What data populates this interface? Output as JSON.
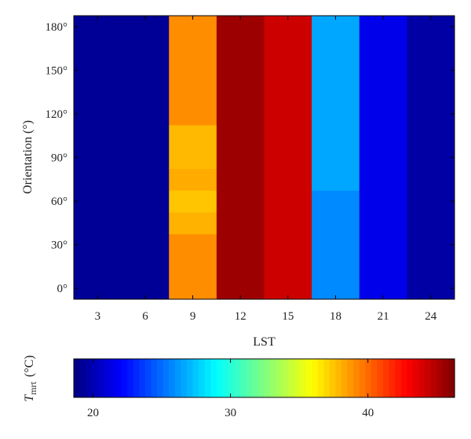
{
  "chart_data": {
    "type": "heatmap",
    "xlabel": "LST",
    "ylabel": "Orientation (°)",
    "x_ticks": [
      3,
      6,
      9,
      12,
      15,
      18,
      21,
      24
    ],
    "y_ticks": [
      0,
      30,
      60,
      90,
      120,
      150,
      180
    ],
    "x_tick_labels": [
      "3",
      "6",
      "9",
      "12",
      "15",
      "18",
      "21",
      "24"
    ],
    "y_tick_labels": [
      "0°",
      "30°",
      "60°",
      "90°",
      "120°",
      "150°",
      "180°"
    ],
    "xlim": [
      1.5,
      25.5
    ],
    "ylim": [
      -7.5,
      187.5
    ],
    "columns": [
      {
        "x_range": [
          1.5,
          7.5
        ],
        "cells": [
          {
            "y_range": [
              -7.5,
              187.5
            ],
            "value": 19.2
          }
        ]
      },
      {
        "x_range": [
          7.5,
          10.5
        ],
        "cells": [
          {
            "y_range": [
              -7.5,
              37.5
            ],
            "value": 39.0
          },
          {
            "y_range": [
              37.5,
              52.5
            ],
            "value": 38.0
          },
          {
            "y_range": [
              52.5,
              67.5
            ],
            "value": 37.5
          },
          {
            "y_range": [
              67.5,
              82.5
            ],
            "value": 38.2
          },
          {
            "y_range": [
              82.5,
              112.5
            ],
            "value": 37.8
          },
          {
            "y_range": [
              112.5,
              187.5
            ],
            "value": 39.0
          }
        ]
      },
      {
        "x_range": [
          10.5,
          13.5
        ],
        "cells": [
          {
            "y_range": [
              -7.5,
              187.5
            ],
            "value": 45.5
          }
        ]
      },
      {
        "x_range": [
          13.5,
          16.5
        ],
        "cells": [
          {
            "y_range": [
              -7.5,
              187.5
            ],
            "value": 44.2
          }
        ]
      },
      {
        "x_range": [
          16.5,
          19.5
        ],
        "cells": [
          {
            "y_range": [
              -7.5,
              67.5
            ],
            "value": 25.8
          },
          {
            "y_range": [
              67.5,
              187.5
            ],
            "value": 26.6
          }
        ]
      },
      {
        "x_range": [
          19.5,
          22.5
        ],
        "cells": [
          {
            "y_range": [
              -7.5,
              187.5
            ],
            "value": 21.5
          }
        ]
      },
      {
        "x_range": [
          22.5,
          25.5
        ],
        "cells": [
          {
            "y_range": [
              -7.5,
              187.5
            ],
            "value": 19.6
          }
        ]
      }
    ],
    "colorbar": {
      "label_main": "T",
      "label_sub": "mrt",
      "label_unit": "(°C)",
      "range": [
        18.6,
        46.3
      ],
      "ticks": [
        20,
        30,
        40
      ],
      "tick_labels": [
        "20",
        "30",
        "40"
      ],
      "colormap": "jet",
      "orientation": "horizontal",
      "placement": "bottom"
    }
  }
}
